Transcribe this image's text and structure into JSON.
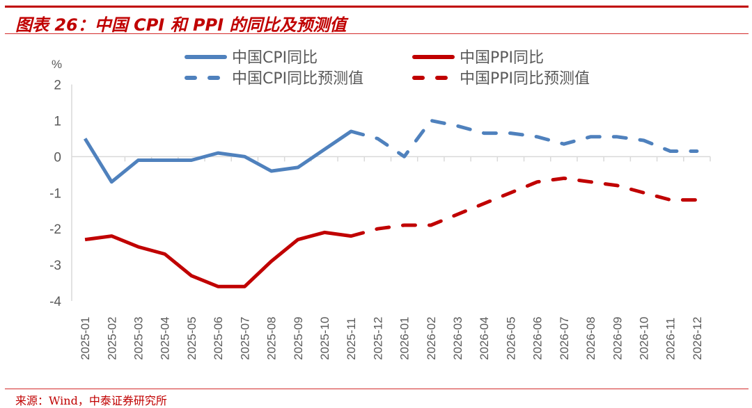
{
  "header": {
    "title": "图表 26：中国 CPI 和 PPI 的同比及预测值"
  },
  "footer": {
    "source": "来源：Wind，中泰证券研究所"
  },
  "colors": {
    "accent": "#c00000",
    "cpi": "#4f81bd",
    "ppi": "#c00000",
    "axis": "#d9d9d9",
    "text": "#595959"
  },
  "chart_data": {
    "type": "line",
    "title": "中国 CPI 和 PPI 的同比及预测值",
    "ylabel": "%",
    "xlabel": "",
    "ylim": [
      -4,
      2
    ],
    "yticks": [
      "2",
      "1",
      "0",
      "-1",
      "-2",
      "-3",
      "-4"
    ],
    "ytick_values": [
      2,
      1,
      0,
      -1,
      -2,
      -3,
      -4
    ],
    "grid": false,
    "legend_position": "top",
    "categories": [
      "2025-01",
      "2025-02",
      "2025-03",
      "2025-04",
      "2025-05",
      "2025-06",
      "2025-07",
      "2025-08",
      "2025-09",
      "2025-10",
      "2025-11",
      "2025-12",
      "2026-01",
      "2026-02",
      "2026-03",
      "2026-04",
      "2026-05",
      "2026-06",
      "2026-07",
      "2026-08",
      "2026-09",
      "2026-10",
      "2026-11",
      "2026-12"
    ],
    "series": [
      {
        "name": "中国CPI同比",
        "style": "solid",
        "color": "#4f81bd",
        "values": [
          0.5,
          -0.7,
          -0.1,
          -0.1,
          -0.1,
          0.1,
          0.0,
          -0.4,
          -0.3,
          0.2,
          0.7,
          null,
          null,
          null,
          null,
          null,
          null,
          null,
          null,
          null,
          null,
          null,
          null,
          null
        ]
      },
      {
        "name": "中国PPI同比",
        "style": "solid",
        "color": "#c00000",
        "values": [
          -2.3,
          -2.2,
          -2.5,
          -2.7,
          -3.3,
          -3.6,
          -3.6,
          -2.9,
          -2.3,
          -2.1,
          -2.2,
          null,
          null,
          null,
          null,
          null,
          null,
          null,
          null,
          null,
          null,
          null,
          null,
          null
        ]
      },
      {
        "name": "中国CPI同比预测值",
        "style": "dashed",
        "color": "#4f81bd",
        "values": [
          null,
          null,
          null,
          null,
          null,
          null,
          null,
          null,
          null,
          null,
          0.7,
          0.5,
          0.0,
          1.0,
          0.85,
          0.65,
          0.65,
          0.55,
          0.35,
          0.55,
          0.55,
          0.45,
          0.15,
          0.15
        ]
      },
      {
        "name": "中国PPI同比预测值",
        "style": "dashed",
        "color": "#c00000",
        "values": [
          null,
          null,
          null,
          null,
          null,
          null,
          null,
          null,
          null,
          null,
          -2.2,
          -2.0,
          -1.9,
          -1.9,
          -1.6,
          -1.3,
          -1.0,
          -0.7,
          -0.6,
          -0.7,
          -0.8,
          -1.0,
          -1.2,
          -1.2
        ]
      }
    ]
  }
}
